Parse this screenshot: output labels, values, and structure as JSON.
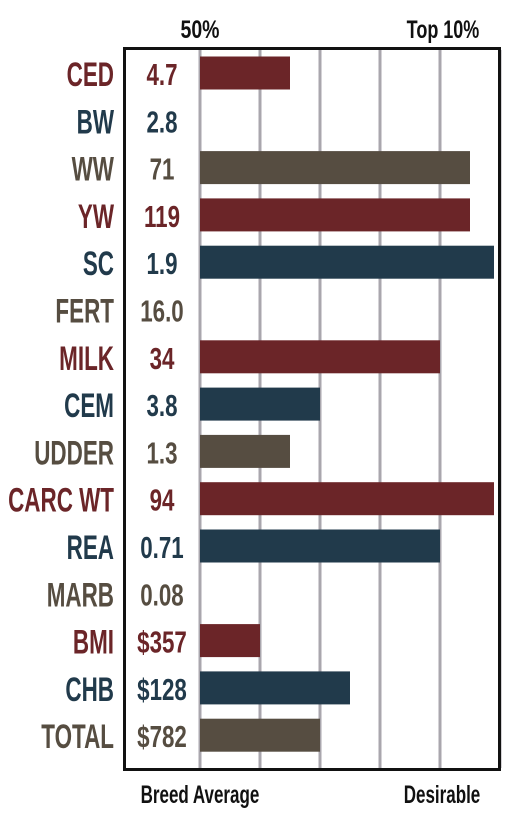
{
  "chart_data": {
    "type": "bar",
    "orientation": "horizontal",
    "top_labels": [
      "50%",
      "Top 10%"
    ],
    "bottom_labels": [
      "Breed Average",
      "Desirable"
    ],
    "scale_ticks": [
      0,
      1,
      2,
      3,
      4,
      5
    ],
    "scale_range": [
      0,
      5
    ],
    "grid": true,
    "colors": {
      "red": "#6b2528",
      "blue": "#213a4b",
      "gray": "#564d41",
      "grid": "#a9a6ad",
      "frame": "#111111"
    },
    "categories": [
      "CED",
      "BW",
      "WW",
      "YW",
      "SC",
      "FERT",
      "MILK",
      "CEM",
      "UDDER",
      "CARC WT",
      "REA",
      "MARB",
      "BMI",
      "CHB",
      "TOTAL"
    ],
    "epd_values": [
      "4.7",
      "2.8",
      "71",
      "119",
      "1.9",
      "16.0",
      "34",
      "3.8",
      "1.3",
      "94",
      "0.71",
      "0.08",
      "$357",
      "$128",
      "$782"
    ],
    "colors_per_row": [
      "red",
      "blue",
      "gray",
      "red",
      "blue",
      "gray",
      "red",
      "blue",
      "gray",
      "red",
      "blue",
      "gray",
      "red",
      "blue",
      "gray"
    ],
    "values": [
      1.5,
      0,
      4.5,
      4.5,
      4.9,
      0,
      4.0,
      2.0,
      1.5,
      4.9,
      4.0,
      0,
      1.0,
      2.5,
      2.0
    ]
  }
}
